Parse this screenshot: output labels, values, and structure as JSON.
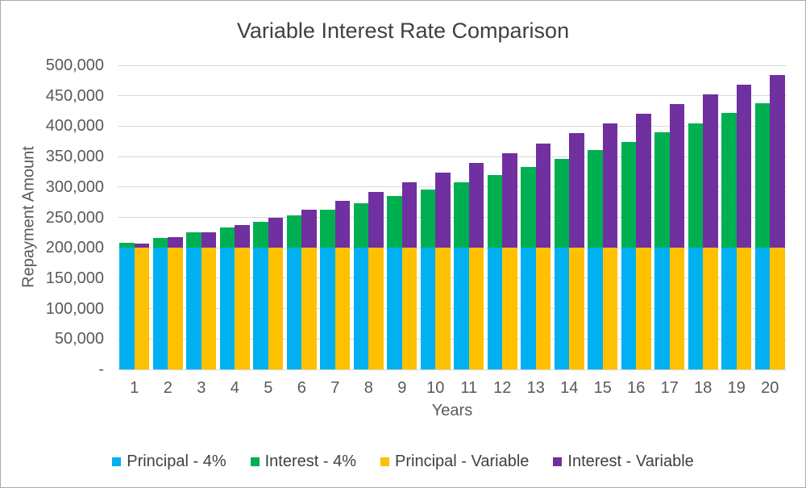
{
  "chart_data": {
    "type": "bar",
    "variant": "clustered-stacked-columns",
    "title": "Variable Interest Rate Comparison",
    "xlabel": "Years",
    "ylabel": "Repayment Amount",
    "categories": [
      "1",
      "2",
      "3",
      "4",
      "5",
      "6",
      "7",
      "8",
      "9",
      "10",
      "11",
      "12",
      "13",
      "14",
      "15",
      "16",
      "17",
      "18",
      "19",
      "20"
    ],
    "series": [
      {
        "name": "Principal - 4%",
        "color": "#00B0F0",
        "stack": "fixed-rate",
        "values": [
          200000,
          200000,
          200000,
          200000,
          200000,
          200000,
          200000,
          200000,
          200000,
          200000,
          200000,
          200000,
          200000,
          200000,
          200000,
          200000,
          200000,
          200000,
          200000,
          200000
        ]
      },
      {
        "name": "Interest - 4%",
        "color": "#00B050",
        "stack": "fixed-rate",
        "values": [
          8000,
          16320,
          24973,
          33972,
          43331,
          53064,
          63186,
          73714,
          84663,
          96049,
          107891,
          120206,
          133014,
          146335,
          160189,
          174597,
          189581,
          205164,
          221370,
          238225
        ]
      },
      {
        "name": "Principal - Variable",
        "color": "#FFC000",
        "stack": "variable-rate",
        "values": [
          200000,
          200000,
          200000,
          200000,
          200000,
          200000,
          200000,
          200000,
          200000,
          200000,
          200000,
          200000,
          200000,
          200000,
          200000,
          200000,
          200000,
          200000,
          200000,
          200000
        ]
      },
      {
        "name": "Interest - Variable",
        "color": "#7030A0",
        "stack": "variable-rate",
        "values": [
          7000,
          17000,
          26000,
          37000,
          49000,
          62000,
          77000,
          92000,
          108000,
          124000,
          140000,
          156000,
          172000,
          188000,
          204000,
          220000,
          236000,
          252000,
          268000,
          284000
        ]
      }
    ],
    "y_axis": {
      "min": 0,
      "max": 500000,
      "step": 50000,
      "tick_labels": [
        "-",
        "50,000",
        "100,000",
        "150,000",
        "200,000",
        "250,000",
        "300,000",
        "350,000",
        "400,000",
        "450,000",
        "500,000"
      ]
    },
    "grid": true,
    "legend_position": "bottom",
    "colors": {
      "grid": "#d9d9d9",
      "axis_text": "#595959",
      "title_text": "#404040",
      "frame_border": "#ababab",
      "background": "#ffffff"
    }
  }
}
